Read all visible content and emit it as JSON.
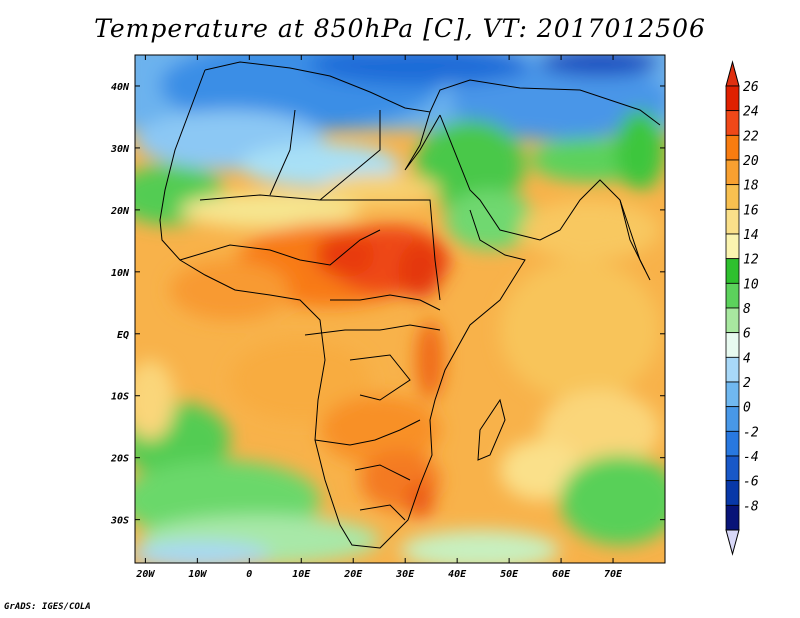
{
  "title": "Temperature at 850hPa [C], VT: 2017012506",
  "credit": "GrADS: IGES/COLA",
  "map": {
    "lon_range": [
      -22,
      80
    ],
    "lat_range": [
      -37,
      45
    ],
    "lon_ticks": [
      "20W",
      "10W",
      "0",
      "10E",
      "20E",
      "30E",
      "40E",
      "50E",
      "60E",
      "70E"
    ],
    "lon_tick_values": [
      -20,
      -10,
      0,
      10,
      20,
      30,
      40,
      50,
      60,
      70
    ],
    "lat_ticks": [
      "40N",
      "30N",
      "20N",
      "10N",
      "EQ",
      "10S",
      "20S",
      "30S"
    ],
    "lat_tick_values": [
      40,
      30,
      20,
      10,
      0,
      -10,
      -20,
      -30
    ]
  },
  "colorbar": {
    "labels": [
      "26",
      "24",
      "22",
      "20",
      "18",
      "16",
      "14",
      "12",
      "10",
      "8",
      "6",
      "4",
      "2",
      "0",
      "-2",
      "-4",
      "-6",
      "-8"
    ],
    "colors": [
      "#e02000",
      "#f04818",
      "#f87c10",
      "#f8a030",
      "#f8c050",
      "#fae08a",
      "#fbf4b0",
      "#2ec02e",
      "#5cd25c",
      "#a8e8a0",
      "#e8faf0",
      "#a8d8f8",
      "#70b8f0",
      "#4898e8",
      "#2878e0",
      "#1858c8",
      "#0838a8",
      "#081478"
    ],
    "top_color": "#e03010",
    "bottom_color": "#d8d8f8"
  }
}
